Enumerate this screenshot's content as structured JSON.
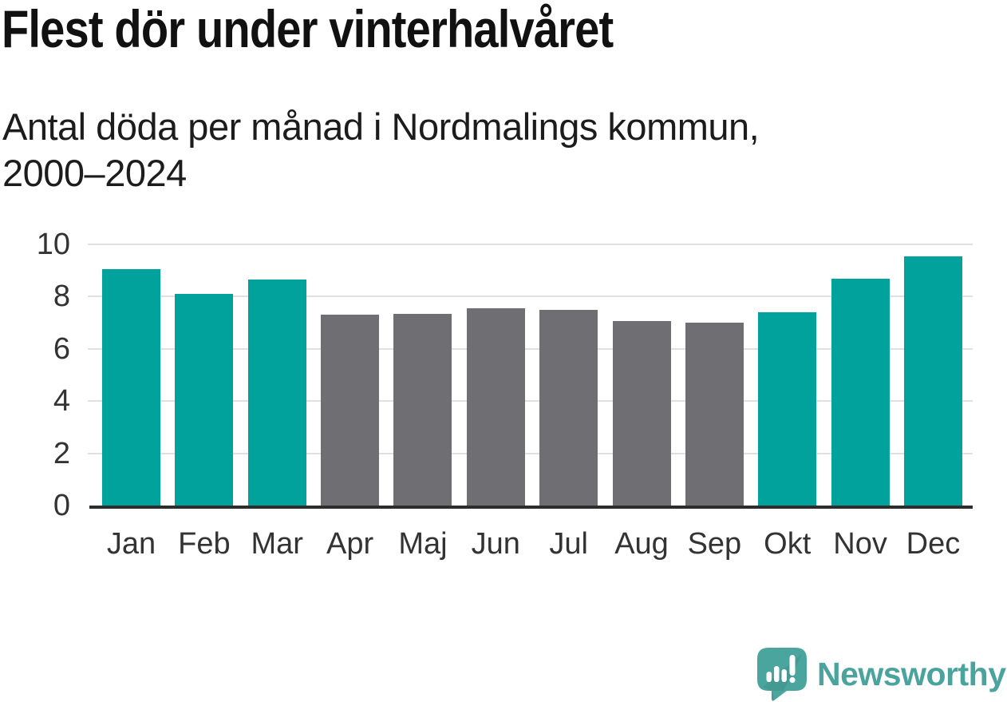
{
  "header": {
    "title": "Flest dör under vinterhalvåret",
    "subtitle": "Antal döda per månad i Nordmalings kommun, 2000–2024"
  },
  "chart_data": {
    "type": "bar",
    "title": "Flest dör under vinterhalvåret",
    "subtitle": "Antal döda per månad i Nordmalings kommun, 2000–2024",
    "categories": [
      "Jan",
      "Feb",
      "Mar",
      "Apr",
      "Maj",
      "Jun",
      "Jul",
      "Aug",
      "Sep",
      "Okt",
      "Nov",
      "Dec"
    ],
    "values": [
      9.05,
      8.1,
      8.65,
      7.3,
      7.35,
      7.55,
      7.5,
      7.05,
      7.0,
      7.4,
      8.7,
      9.55
    ],
    "bar_roles": [
      "highlight",
      "highlight",
      "highlight",
      "base",
      "base",
      "base",
      "base",
      "base",
      "base",
      "highlight",
      "highlight",
      "highlight"
    ],
    "palette": {
      "highlight": "#00a29b",
      "base": "#6e6e73"
    },
    "xlabel": "",
    "ylabel": "",
    "ylim": [
      0,
      10
    ],
    "yticks": [
      0,
      2,
      4,
      6,
      8,
      10
    ],
    "grid": "horizontal",
    "legend": "none"
  },
  "style_colors": {
    "gridline": "#e0e0e0",
    "axis_line": "#2d2d2d",
    "tick_label": "#333333",
    "title_text": "#111111",
    "subtitle_text": "#1c1c1c"
  },
  "logo": {
    "brand": "Newsworthy",
    "icon": "newsworthy-speech-bubble-chart-icon",
    "bubble_color": "#4ba59f",
    "text_color": "#4aa39d"
  }
}
